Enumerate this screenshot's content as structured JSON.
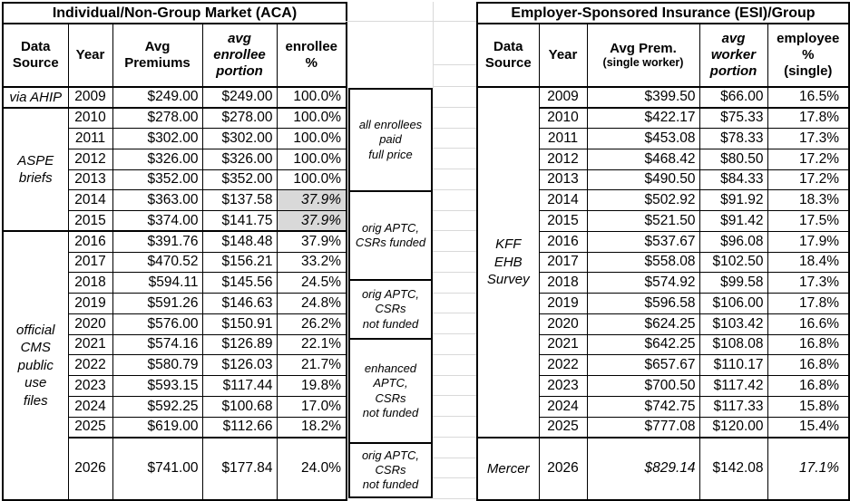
{
  "colors": {
    "shaded_cell": "#d9d9d9",
    "border": "#000000",
    "gridline": "#d9d9d9",
    "background": "#ffffff"
  },
  "left_table": {
    "title": "Individual/Non-Group Market (ACA)",
    "headers": {
      "source": "Data\nSource",
      "year": "Year",
      "premium": "Avg\nPremiums",
      "portion": "avg\nenrollee\nportion",
      "pct": "enrollee\n%"
    },
    "rows": [
      {
        "source": {
          "label": "via AHIP",
          "span": 1
        },
        "year": "2009",
        "premium": "$249.00",
        "portion": "$249.00",
        "pct": "100.0%",
        "thick": true
      },
      {
        "source": {
          "label": "ASPE\nbriefs",
          "span": 6
        },
        "year": "2010",
        "premium": "$278.00",
        "portion": "$278.00",
        "pct": "100.0%"
      },
      {
        "year": "2011",
        "premium": "$302.00",
        "portion": "$302.00",
        "pct": "100.0%"
      },
      {
        "year": "2012",
        "premium": "$326.00",
        "portion": "$326.00",
        "pct": "100.0%"
      },
      {
        "year": "2013",
        "premium": "$352.00",
        "portion": "$352.00",
        "pct": "100.0%"
      },
      {
        "year": "2014",
        "premium": "$363.00",
        "portion": "$137.58",
        "pct": "37.9%",
        "pct_shaded": true
      },
      {
        "year": "2015",
        "premium": "$374.00",
        "portion": "$141.75",
        "pct": "37.9%",
        "pct_shaded": true,
        "thick": true
      },
      {
        "source": {
          "label": "official\nCMS\npublic\nuse\nfiles",
          "span": 11
        },
        "year": "2016",
        "premium": "$391.76",
        "portion": "$148.48",
        "pct": "37.9%"
      },
      {
        "year": "2017",
        "premium": "$470.52",
        "portion": "$156.21",
        "pct": "33.2%"
      },
      {
        "year": "2018",
        "premium": "$594.11",
        "portion": "$145.56",
        "pct": "24.5%"
      },
      {
        "year": "2019",
        "premium": "$591.26",
        "portion": "$146.63",
        "pct": "24.8%"
      },
      {
        "year": "2020",
        "premium": "$576.00",
        "portion": "$150.91",
        "pct": "26.2%"
      },
      {
        "year": "2021",
        "premium": "$574.16",
        "portion": "$126.89",
        "pct": "22.1%"
      },
      {
        "year": "2022",
        "premium": "$580.79",
        "portion": "$126.03",
        "pct": "21.7%"
      },
      {
        "year": "2023",
        "premium": "$593.15",
        "portion": "$117.44",
        "pct": "19.8%"
      },
      {
        "year": "2024",
        "premium": "$592.25",
        "portion": "$100.68",
        "pct": "17.0%"
      },
      {
        "year": "2025",
        "premium": "$619.00",
        "portion": "$112.66",
        "pct": "18.2%",
        "thick": true
      },
      {
        "year": "2026",
        "premium": "$741.00",
        "portion": "$177.84",
        "pct": "24.0%",
        "tall": true
      }
    ]
  },
  "right_table": {
    "title": "Employer-Sponsored Insurance (ESI)/Group",
    "headers": {
      "source": "Data\nSource",
      "year": "Year",
      "premium_main": "Avg Prem.",
      "premium_sub": "(single worker)",
      "portion": "avg\nworker\nportion",
      "pct": "employee\n%\n(single)"
    },
    "rows": [
      {
        "source": {
          "label": "KFF\nEHB\nSurvey",
          "span": 17
        },
        "year": "2009",
        "premium": "$399.50",
        "portion": "$66.00",
        "pct": "16.5%",
        "thick": true
      },
      {
        "year": "2010",
        "premium": "$422.17",
        "portion": "$75.33",
        "pct": "17.8%"
      },
      {
        "year": "2011",
        "premium": "$453.08",
        "portion": "$78.33",
        "pct": "17.3%"
      },
      {
        "year": "2012",
        "premium": "$468.42",
        "portion": "$80.50",
        "pct": "17.2%"
      },
      {
        "year": "2013",
        "premium": "$490.50",
        "portion": "$84.33",
        "pct": "17.2%"
      },
      {
        "year": "2014",
        "premium": "$502.92",
        "portion": "$91.92",
        "pct": "18.3%"
      },
      {
        "year": "2015",
        "premium": "$521.50",
        "portion": "$91.42",
        "pct": "17.5%"
      },
      {
        "year": "2016",
        "premium": "$537.67",
        "portion": "$96.08",
        "pct": "17.9%"
      },
      {
        "year": "2017",
        "premium": "$558.08",
        "portion": "$102.50",
        "pct": "18.4%"
      },
      {
        "year": "2018",
        "premium": "$574.92",
        "portion": "$99.58",
        "pct": "17.3%"
      },
      {
        "year": "2019",
        "premium": "$596.58",
        "portion": "$106.00",
        "pct": "17.8%"
      },
      {
        "year": "2020",
        "premium": "$624.25",
        "portion": "$103.42",
        "pct": "16.6%"
      },
      {
        "year": "2021",
        "premium": "$642.25",
        "portion": "$108.08",
        "pct": "16.8%"
      },
      {
        "year": "2022",
        "premium": "$657.67",
        "portion": "$110.17",
        "pct": "16.8%"
      },
      {
        "year": "2023",
        "premium": "$700.50",
        "portion": "$117.42",
        "pct": "16.8%"
      },
      {
        "year": "2024",
        "premium": "$742.75",
        "portion": "$117.33",
        "pct": "15.8%"
      },
      {
        "year": "2025",
        "premium": "$777.08",
        "portion": "$120.00",
        "pct": "15.4%",
        "thick": true
      },
      {
        "source": {
          "label": "Mercer",
          "span": 1
        },
        "year": "2026",
        "premium": "$829.14",
        "premium_italic": true,
        "portion": "$142.08",
        "pct": "17.1%",
        "pct_italic": true,
        "tall": true
      }
    ]
  },
  "annotations": [
    {
      "text": "all enrollees\npaid\nfull price"
    },
    {
      "text": "orig APTC,\nCSRs funded"
    },
    {
      "text": "orig APTC,\nCSRs\nnot funded"
    },
    {
      "text": "enhanced\nAPTC,\nCSRs\nnot funded"
    },
    {
      "text": "orig APTC,\nCSRs\nnot funded"
    }
  ]
}
